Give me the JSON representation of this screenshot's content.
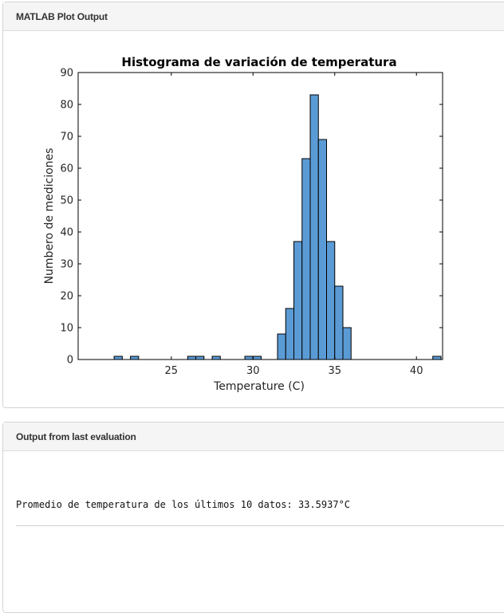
{
  "plot_panel": {
    "title": "MATLAB Plot Output"
  },
  "output_panel": {
    "title": "Output from last evaluation",
    "text": "Promedio de temperatura de los últimos 10 datos: 33.5937°C"
  },
  "colors": {
    "bar_fill": "#5b9bd5",
    "bar_stroke": "#000000",
    "axes": "#000000"
  },
  "chart_data": {
    "type": "bar",
    "title": "Histograma de variación de temperatura",
    "xlabel": "Temperature (C)",
    "ylabel": "Numbero de mediciones",
    "xlim": [
      19.3,
      41.6
    ],
    "ylim": [
      0,
      90
    ],
    "xticks": [
      25,
      30,
      35,
      40
    ],
    "yticks": [
      0,
      10,
      20,
      30,
      40,
      50,
      60,
      70,
      80,
      90
    ],
    "bin_width": 0.5,
    "bins": [
      {
        "start": 21.5,
        "value": 1
      },
      {
        "start": 22.5,
        "value": 1
      },
      {
        "start": 26.0,
        "value": 1
      },
      {
        "start": 26.5,
        "value": 1
      },
      {
        "start": 27.5,
        "value": 1
      },
      {
        "start": 29.5,
        "value": 1
      },
      {
        "start": 30.0,
        "value": 1
      },
      {
        "start": 31.5,
        "value": 8
      },
      {
        "start": 32.0,
        "value": 16
      },
      {
        "start": 32.5,
        "value": 37
      },
      {
        "start": 33.0,
        "value": 63
      },
      {
        "start": 33.5,
        "value": 83
      },
      {
        "start": 34.0,
        "value": 69
      },
      {
        "start": 34.5,
        "value": 37
      },
      {
        "start": 35.0,
        "value": 23
      },
      {
        "start": 35.5,
        "value": 10
      },
      {
        "start": 41.0,
        "value": 1
      }
    ]
  }
}
